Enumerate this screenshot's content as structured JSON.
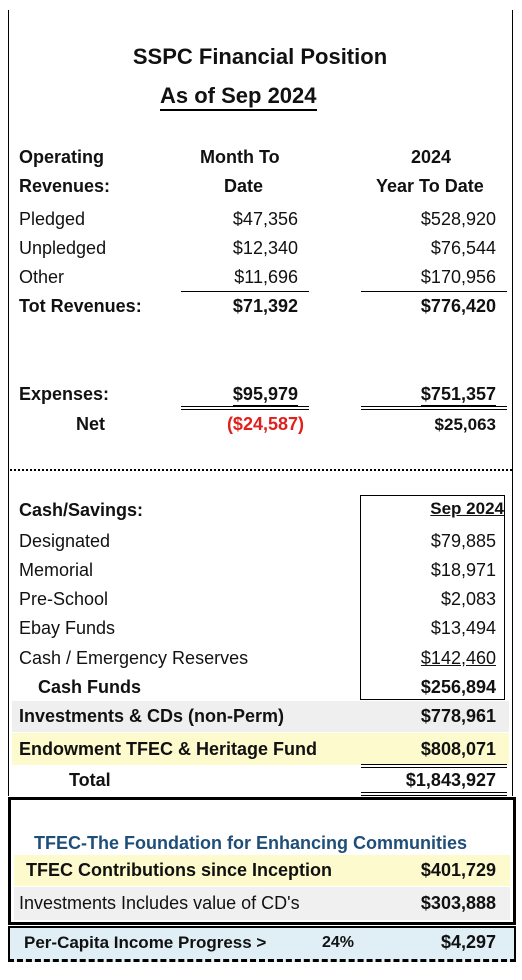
{
  "title": "SSPC Financial Position",
  "subtitle": "As of Sep 2024",
  "columns": {
    "label_line1": "Operating",
    "label_line2": "Revenues:",
    "month_line1": "Month To",
    "month_line2": "Date",
    "ytd_line1": "2024",
    "ytd_line2": "Year To Date"
  },
  "revenues": [
    {
      "label": "Pledged",
      "month": "$47,356",
      "ytd": "$528,920"
    },
    {
      "label": "Unpledged",
      "month": "$12,340",
      "ytd": "$76,544"
    },
    {
      "label": "Other",
      "month": "$11,696",
      "ytd": "$170,956"
    }
  ],
  "total_revenues": {
    "label": "Tot Revenues:",
    "month": "$71,392",
    "ytd": "$776,420"
  },
  "expenses": {
    "label": "Expenses:",
    "month": "$95,979",
    "ytd": "$751,357"
  },
  "net": {
    "label": "Net",
    "month": "($24,587)",
    "ytd": "$25,063"
  },
  "cash": {
    "heading": "Cash/Savings:",
    "column": "Sep 2024",
    "items": [
      {
        "label": "Designated",
        "value": "$79,885"
      },
      {
        "label": "Memorial",
        "value": "$18,971"
      },
      {
        "label": "Pre-School",
        "value": "$2,083"
      },
      {
        "label": "Ebay Funds",
        "value": "$13,494"
      },
      {
        "label": "Cash / Emergency Reserves",
        "value": "$142,460"
      }
    ],
    "total": {
      "label": "Cash Funds",
      "value": "$256,894"
    }
  },
  "investments": {
    "label": "Investments & CDs  (non-Perm)",
    "value": "$778,961"
  },
  "endowment": {
    "label": "Endowment TFEC & Heritage Fund",
    "value": "$808,071"
  },
  "grand_total": {
    "label": "Total",
    "value": "$1,843,927"
  },
  "tfec": {
    "title": "TFEC-The Foundation for Enhancing Communities",
    "contrib_label": "TFEC Contributions since Inception",
    "contrib_value": "$401,729",
    "invest_label": "Investments Includes value of CD's",
    "invest_value": "$303,888"
  },
  "per_capita": {
    "label": "Per-Capita Income Progress >",
    "percent": "24%",
    "value": "$4,297"
  },
  "colors": {
    "negative": "#e0201c",
    "highlight_yellow": "#fdfbcd",
    "highlight_grey": "#efefef",
    "tfec_blue": "#1f4e79",
    "per_capita_bg": "#dfeff5"
  }
}
